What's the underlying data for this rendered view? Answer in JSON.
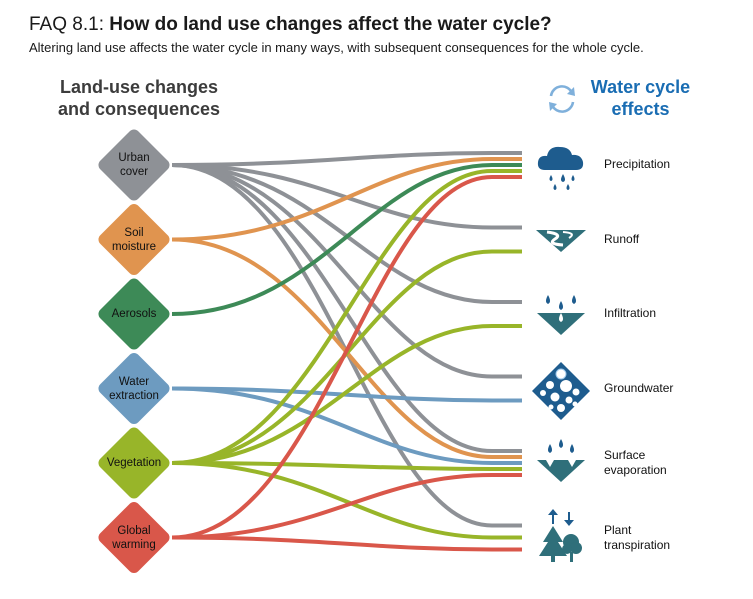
{
  "title": {
    "prefix": "FAQ 8.1:",
    "main": "How do land use changes affect the water cycle?"
  },
  "subtitle": "Altering land use affects the water cycle in many ways, with subsequent consequences for the whole cycle.",
  "left_heading": {
    "line1": "Land-use changes",
    "line2": "and consequences"
  },
  "right_heading": {
    "line1": "Water cycle",
    "line2": "effects"
  },
  "drivers": [
    {
      "id": "urban",
      "line1": "Urban",
      "line2": "cover",
      "color": "#8e9196"
    },
    {
      "id": "soil",
      "line1": "Soil",
      "line2": "moisture",
      "color": "#e0944f"
    },
    {
      "id": "aerosols",
      "line1": "Aerosols",
      "line2": "",
      "color": "#3d8a57"
    },
    {
      "id": "water",
      "line1": "Water",
      "line2": "extraction",
      "color": "#6d9bc0"
    },
    {
      "id": "vegetation",
      "line1": "Vegetation",
      "line2": "",
      "color": "#98b529"
    },
    {
      "id": "warming",
      "line1": "Global",
      "line2": "warming",
      "color": "#d9574a"
    }
  ],
  "effects": [
    {
      "id": "precipitation",
      "line1": "Precipitation",
      "line2": "",
      "icon": "rain-cloud-icon"
    },
    {
      "id": "runoff",
      "line1": "Runoff",
      "line2": "",
      "icon": "river-runoff-icon"
    },
    {
      "id": "infiltration",
      "line1": "Infiltration",
      "line2": "",
      "icon": "infiltration-drops-icon"
    },
    {
      "id": "groundwater",
      "line1": "Groundwater",
      "line2": "",
      "icon": "groundwater-pores-icon"
    },
    {
      "id": "surface_evaporation",
      "line1": "Surface",
      "line2": "evaporation",
      "icon": "evaporation-drops-icon"
    },
    {
      "id": "plant_transpiration",
      "line1": "Plant",
      "line2": "transpiration",
      "icon": "trees-transpiration-icon"
    }
  ],
  "links": [
    {
      "from": "urban",
      "to": "precipitation"
    },
    {
      "from": "urban",
      "to": "runoff"
    },
    {
      "from": "urban",
      "to": "infiltration"
    },
    {
      "from": "urban",
      "to": "groundwater"
    },
    {
      "from": "urban",
      "to": "surface_evaporation"
    },
    {
      "from": "urban",
      "to": "plant_transpiration"
    },
    {
      "from": "soil",
      "to": "precipitation"
    },
    {
      "from": "soil",
      "to": "surface_evaporation"
    },
    {
      "from": "aerosols",
      "to": "precipitation"
    },
    {
      "from": "water",
      "to": "groundwater"
    },
    {
      "from": "water",
      "to": "surface_evaporation"
    },
    {
      "from": "vegetation",
      "to": "precipitation"
    },
    {
      "from": "vegetation",
      "to": "runoff"
    },
    {
      "from": "vegetation",
      "to": "infiltration"
    },
    {
      "from": "vegetation",
      "to": "surface_evaporation"
    },
    {
      "from": "vegetation",
      "to": "plant_transpiration"
    },
    {
      "from": "warming",
      "to": "precipitation"
    },
    {
      "from": "warming",
      "to": "surface_evaporation"
    },
    {
      "from": "warming",
      "to": "plant_transpiration"
    }
  ],
  "colors": {
    "heading_blue": "#1a6db3",
    "icon_blue": "#1e5c8e",
    "icon_teal": "#2f6f7a"
  }
}
